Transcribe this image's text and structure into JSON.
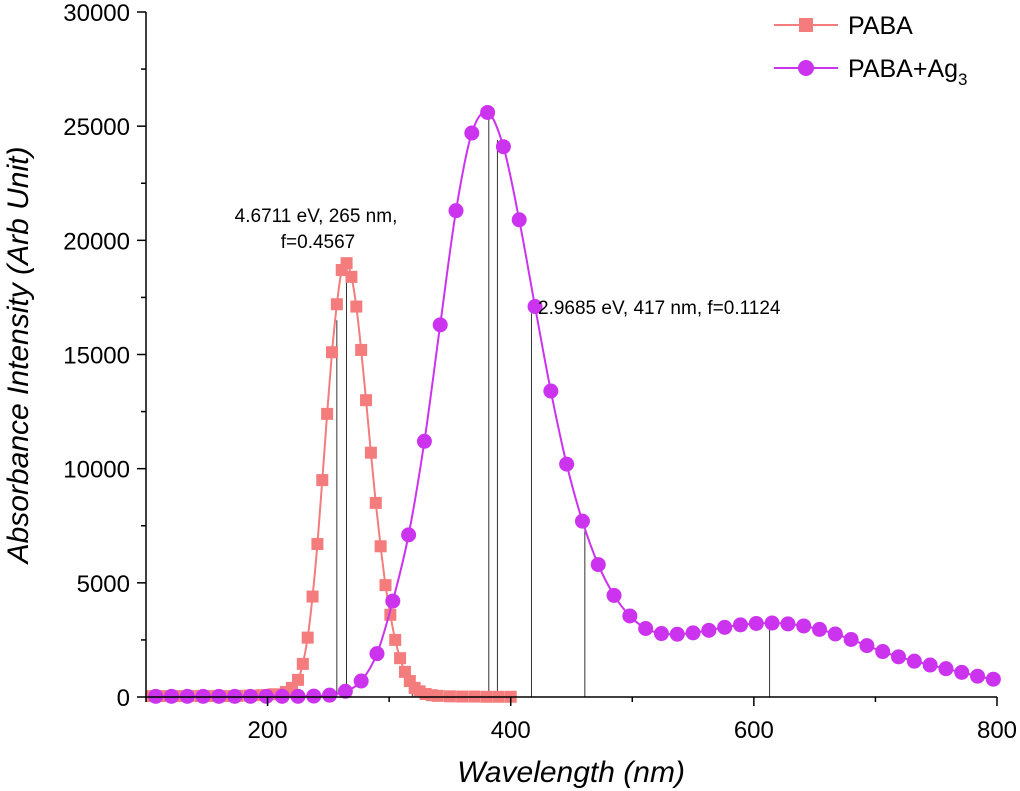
{
  "chart_data": {
    "type": "line",
    "xlabel": "Wavelength (nm)",
    "ylabel": "Absorbance Intensity (Arb Unit)",
    "xlim": [
      100,
      800
    ],
    "ylim": [
      0,
      30000
    ],
    "x_ticks": [
      200,
      400,
      600,
      800
    ],
    "x_tick_labels": [
      "200",
      "400",
      "600",
      "800"
    ],
    "y_ticks": [
      0,
      5000,
      10000,
      15000,
      20000,
      25000,
      30000
    ],
    "y_tick_labels": [
      "0",
      "5000",
      "10000",
      "15000",
      "20000",
      "25000",
      "30000"
    ],
    "grid": false,
    "legend_position": "top-right",
    "series": [
      {
        "name": "PABA",
        "legend_label": "PABA",
        "color": "#f47c7c",
        "marker": "square",
        "x": [
          105,
          115,
          125,
          135,
          145,
          155,
          165,
          175,
          185,
          195,
          205,
          215,
          220,
          225,
          229,
          233,
          237,
          241,
          245,
          249,
          253,
          257,
          261,
          265,
          269,
          273,
          277,
          281,
          285,
          289,
          293,
          297,
          301,
          305,
          309,
          313,
          317,
          321,
          325,
          330,
          335,
          340,
          350,
          360,
          370,
          380,
          390,
          400
        ],
        "y": [
          40,
          40,
          40,
          40,
          40,
          40,
          40,
          50,
          60,
          80,
          120,
          220,
          400,
          750,
          1450,
          2600,
          4400,
          6700,
          9500,
          12400,
          15100,
          17200,
          18700,
          19000,
          18400,
          17100,
          15200,
          13000,
          10700,
          8500,
          6600,
          4900,
          3600,
          2500,
          1700,
          1100,
          700,
          400,
          250,
          130,
          80,
          50,
          30,
          20,
          20,
          10,
          10,
          10
        ]
      },
      {
        "name": "PABA+Ag3",
        "legend_label": "PABA+Ag",
        "legend_subscript": "3",
        "color": "#cc33ee",
        "marker": "circle",
        "x": [
          108,
          121,
          134,
          147,
          160,
          173,
          186,
          199,
          212,
          225,
          238,
          251,
          264,
          277,
          290,
          303,
          316,
          329,
          342,
          355,
          368,
          381,
          394,
          407,
          420,
          433,
          446,
          459,
          472,
          485,
          498,
          511,
          524,
          537,
          550,
          563,
          576,
          589,
          602,
          615,
          628,
          641,
          654,
          667,
          680,
          693,
          706,
          719,
          732,
          745,
          758,
          771,
          784,
          797
        ],
        "y": [
          30,
          30,
          30,
          30,
          30,
          30,
          30,
          30,
          30,
          30,
          40,
          80,
          250,
          700,
          1900,
          4200,
          7100,
          11200,
          16300,
          21300,
          24700,
          25600,
          24100,
          20900,
          17100,
          13400,
          10200,
          7700,
          5800,
          4450,
          3550,
          3000,
          2780,
          2750,
          2810,
          2920,
          3050,
          3160,
          3220,
          3240,
          3200,
          3110,
          2960,
          2760,
          2520,
          2250,
          1990,
          1760,
          1570,
          1400,
          1240,
          1080,
          910,
          780
        ]
      }
    ],
    "sticks": [
      {
        "x": 257,
        "y": 16500
      },
      {
        "x": 265,
        "y": 18800
      },
      {
        "x": 319,
        "y": 600
      },
      {
        "x": 382,
        "y": 25400
      },
      {
        "x": 389,
        "y": 24400
      },
      {
        "x": 417,
        "y": 16800
      },
      {
        "x": 461,
        "y": 7500
      },
      {
        "x": 613,
        "y": 3200
      }
    ],
    "annotations": [
      {
        "line1": "4.6711 eV, 265 nm,",
        "line2": "f=0.4567",
        "x": 265,
        "y": 19000
      },
      {
        "line1": "2.9685 eV, 417 nm, f=0.1124",
        "x": 417,
        "y": 16800
      }
    ]
  }
}
